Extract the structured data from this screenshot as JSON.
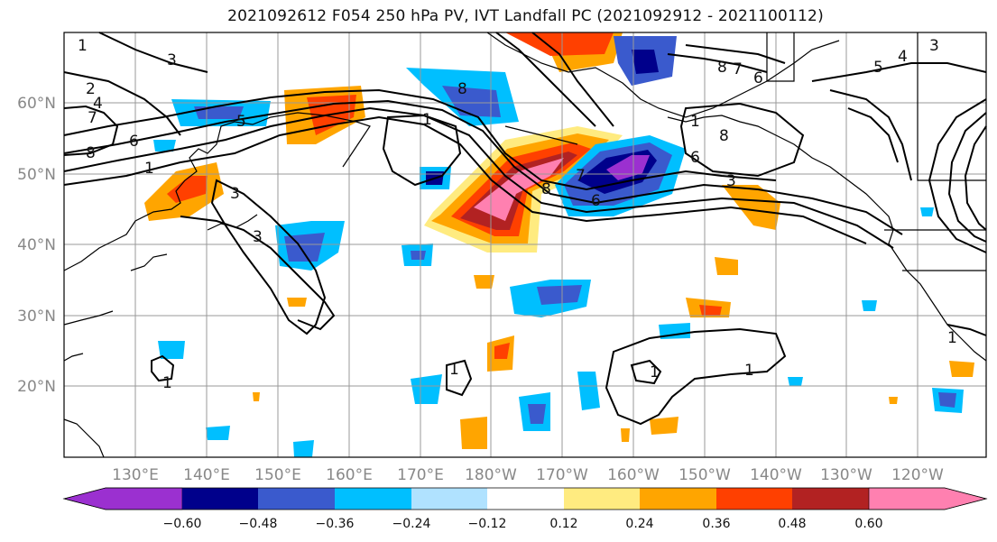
{
  "title": "2021092612 F054 250 hPa PV, IVT Landfall PC (2021092912 - 2021100112)",
  "map": {
    "lon_labels": [
      "130°E",
      "140°E",
      "150°E",
      "160°E",
      "170°E",
      "180°W",
      "170°W",
      "160°W",
      "150°W",
      "140°W",
      "130°W",
      "120°W"
    ],
    "lat_labels": [
      "60°N",
      "50°N",
      "40°N",
      "30°N",
      "20°N"
    ],
    "contour_labels": [
      "1",
      "3",
      "2",
      "4",
      "7",
      "8",
      "5",
      "6",
      "1",
      "3",
      "8",
      "1",
      "8",
      "7",
      "6",
      "1",
      "8",
      "6",
      "3",
      "6",
      "4",
      "8",
      "3",
      "1",
      "3",
      "5",
      "7",
      "1",
      "1",
      "1",
      "1"
    ]
  },
  "colorbar": {
    "ticks": [
      "−0.60",
      "−0.48",
      "−0.36",
      "−0.24",
      "−0.12",
      "0.12",
      "0.24",
      "0.36",
      "0.48",
      "0.60"
    ],
    "colors": [
      "#9b30d0",
      "#00008b",
      "#3a5acd",
      "#00bfff",
      "#b0e2ff",
      "#ffffff",
      "#ffeb80",
      "#ffa500",
      "#ff4000",
      "#b22222",
      "#ff80b0"
    ]
  }
}
